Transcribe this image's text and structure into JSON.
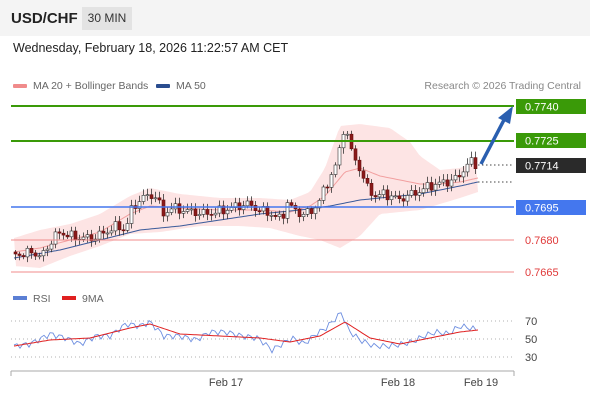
{
  "header": {
    "symbol": "USD/CHF",
    "timeframe": "30 MIN"
  },
  "timestamp": "Wednesday, February 18, 2026 11:22:57 AM CET",
  "legend": {
    "bollinger": {
      "label": "MA 20 + Bollinger Bands",
      "color": "#f08b8b"
    },
    "ma50": {
      "label": "MA 50",
      "color": "#2a4d8f"
    }
  },
  "credit": "Research © 2026 Trading Central",
  "rsi_legend": {
    "rsi": {
      "label": "RSI",
      "color": "#5b7fd4"
    },
    "ma9": {
      "label": "9MA",
      "color": "#e02020"
    }
  },
  "chart_data": {
    "type": "candlestick",
    "current_price": "0.7714",
    "levels": [
      {
        "value": "0.7740",
        "kind": "resistance",
        "style": "green-box"
      },
      {
        "value": "0.7725",
        "kind": "resistance",
        "style": "green-box"
      },
      {
        "value": "0.7695",
        "kind": "pivot",
        "style": "blue-box"
      },
      {
        "value": "0.7680",
        "kind": "support",
        "style": "red-text"
      },
      {
        "value": "0.7665",
        "kind": "support",
        "style": "red-text"
      }
    ],
    "rsi_ticks": [
      "70",
      "50",
      "30"
    ],
    "x_ticks": [
      "Feb 17",
      "Feb 18",
      "Feb 19"
    ]
  }
}
